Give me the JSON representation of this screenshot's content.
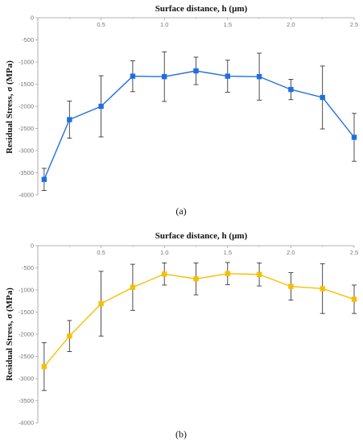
{
  "chart_data": [
    {
      "type": "line",
      "panel_label": "(a)",
      "title": "",
      "xlabel": "Surface distance, h (µm)",
      "ylabel": "Residual Stress, σ (MPa)",
      "xlim": [
        0,
        2.5
      ],
      "ylim": [
        -4000,
        0
      ],
      "xticks": [
        "0.5",
        "1.0",
        "1.5",
        "2.0",
        "2.5"
      ],
      "yticks": [
        "0",
        "-500",
        "-1000",
        "-1500",
        "-2000",
        "-2500",
        "-3000",
        "-3500",
        "-4000"
      ],
      "grid": false,
      "color": "#1f6fe0",
      "series": [
        {
          "x": [
            0.05,
            0.25,
            0.5,
            0.75,
            1.0,
            1.25,
            1.5,
            1.75,
            2.0,
            2.25,
            2.5
          ],
          "values": [
            -3650,
            -2300,
            -2000,
            -1320,
            -1330,
            -1200,
            -1320,
            -1330,
            -1620,
            -1800,
            -2700
          ],
          "error": [
            250,
            420,
            690,
            350,
            560,
            310,
            360,
            530,
            230,
            710,
            540
          ]
        }
      ]
    },
    {
      "type": "line",
      "panel_label": "(b)",
      "title": "",
      "xlabel": "Surface distance, h (µm)",
      "ylabel": "Residual Stress, σ (MPa)",
      "xlim": [
        0,
        2.5
      ],
      "ylim": [
        -4000,
        0
      ],
      "xticks": [
        "0.5",
        "1.0",
        "1.5",
        "2.0",
        "2.5"
      ],
      "yticks": [
        "0",
        "-500",
        "-1000",
        "-1500",
        "-2000",
        "-2500",
        "-3000",
        "-3500",
        "-4000"
      ],
      "grid": false,
      "color": "#f5c000",
      "series": [
        {
          "x": [
            0.05,
            0.25,
            0.5,
            0.75,
            1.0,
            1.25,
            1.5,
            1.75,
            2.0,
            2.25,
            2.5
          ],
          "values": [
            -2730,
            -2040,
            -1310,
            -940,
            -640,
            -750,
            -630,
            -650,
            -920,
            -970,
            -1210
          ],
          "error": [
            540,
            350,
            730,
            520,
            250,
            360,
            250,
            260,
            310,
            560,
            320
          ]
        }
      ]
    }
  ]
}
